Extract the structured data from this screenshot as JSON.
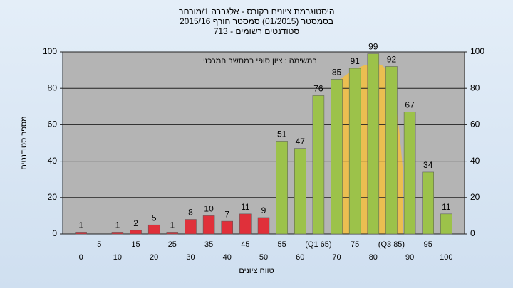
{
  "chart_data": {
    "type": "bar",
    "title": [
      "היסטוגרמת ציונים בקורס - אלגברה 1/מורחב",
      "בסמסטר (01/2015) סמסטר חורף 2015/16",
      "סטודנטים רשומים - 713"
    ],
    "annotation": "במשימה : ציון סופי במחשב המרכזי",
    "x_label": "טווח ציונים",
    "y_label": "מספר סטודנטים",
    "categories": [
      "0",
      "5",
      "10",
      "15",
      "20",
      "25",
      "30",
      "35",
      "40",
      "45",
      "50",
      "55",
      "60",
      "(Q1 65)",
      "70",
      "75",
      "80",
      "(Q3 85)",
      "90",
      "95",
      "100"
    ],
    "values": [
      1,
      null,
      1,
      2,
      5,
      1,
      8,
      10,
      7,
      11,
      9,
      51,
      47,
      76,
      85,
      91,
      99,
      92,
      67,
      34,
      11
    ],
    "colors": [
      "#e0303a",
      "#e0303a",
      "#e0303a",
      "#e0303a",
      "#e0303a",
      "#e0303a",
      "#e0303a",
      "#e0303a",
      "#e0303a",
      "#e0303a",
      "#e0303a",
      "#9cc24a",
      "#9cc24a",
      "#9cc24a",
      "#9cc24a",
      "#9cc24a",
      "#9cc24a",
      "#9cc24a",
      "#9cc24a",
      "#9cc24a",
      "#9cc24a"
    ],
    "ylim": [
      0,
      100
    ],
    "yticks": [
      0,
      20,
      40,
      60,
      80,
      100
    ],
    "y2lim": [
      0,
      100
    ],
    "y2ticks": [
      0,
      20,
      40,
      60,
      80,
      100
    ],
    "grid": true
  }
}
